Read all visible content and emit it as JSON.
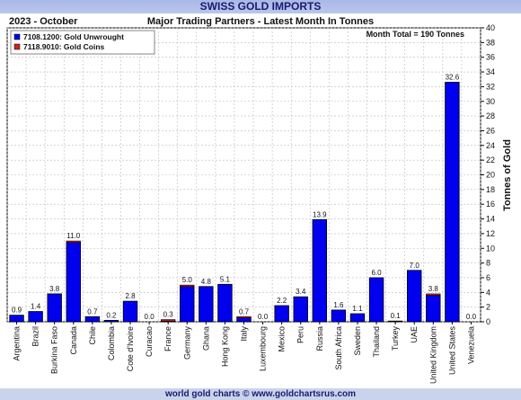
{
  "page": {
    "title": "SWISS GOLD IMPORTS",
    "footer": "world gold charts © www.goldchartsrus.com"
  },
  "chart_data": {
    "type": "bar",
    "period": "2023 - October",
    "title": "Major Trading Partners - Latest Month In Tonnes",
    "annotation": "Month Total = 190 Tonnes",
    "ylabel": "Tonnes of Gold",
    "xlabel": "",
    "ylim": [
      0,
      40
    ],
    "ytick_step": 2,
    "grid": true,
    "legend_position": "top-left",
    "stacked": true,
    "colors": {
      "unwrought": "#0000ee",
      "coins": "#cc2222"
    },
    "categories": [
      "Argentina",
      "Brazil",
      "Burkina Faso",
      "Canada",
      "Chile",
      "Colombia",
      "Cote d'Ivoire",
      "Curacao",
      "France",
      "Germany",
      "Ghana",
      "Hong Kong",
      "Italy",
      "Luxembourg",
      "Mexico",
      "Peru",
      "Russia",
      "South Africa",
      "Sweden",
      "Thailand",
      "Turkey",
      "UAE",
      "United Kingdom",
      "United States",
      "Venezuela"
    ],
    "series": [
      {
        "name": "7108.1200: Gold Unwrought",
        "values": [
          0.9,
          1.4,
          3.8,
          10.8,
          0.7,
          0.2,
          2.8,
          0.0,
          0.1,
          4.8,
          4.8,
          5.1,
          0.6,
          0.0,
          2.2,
          3.4,
          13.9,
          1.6,
          1.1,
          6.0,
          0.1,
          7.0,
          3.6,
          32.6,
          0.0
        ]
      },
      {
        "name": "7118.9010: Gold Coins",
        "values": [
          0,
          0,
          0,
          0.2,
          0,
          0,
          0,
          0,
          0.2,
          0.2,
          0,
          0,
          0.1,
          0,
          0,
          0,
          0,
          0,
          0,
          0,
          0,
          0,
          0.2,
          0,
          0
        ]
      }
    ],
    "totals": [
      "0.9",
      "1.4",
      "3.8",
      "11.0",
      "0.7",
      "0.2",
      "2.8",
      "0.0",
      "0.3",
      "5.0",
      "4.8",
      "5.1",
      "0.7",
      "0.0",
      "2.2",
      "3.4",
      "13.9",
      "1.6",
      "1.1",
      "6.0",
      "0.1",
      "7.0",
      "3.8",
      "32.6",
      "0.0"
    ]
  }
}
